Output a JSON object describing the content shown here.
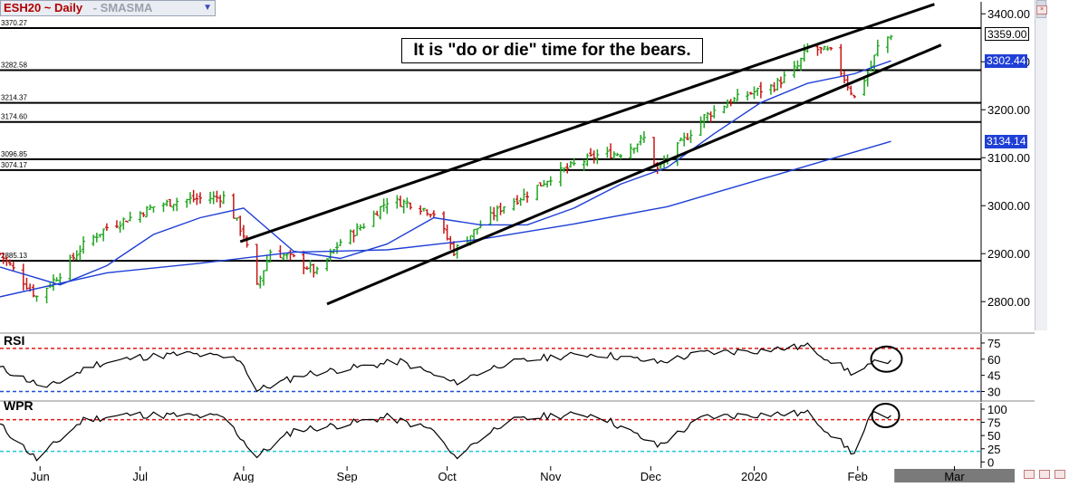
{
  "header": {
    "symbol": "ESH20 ~ Daily",
    "indicators": "-  SMASMA"
  },
  "annotation": "It is \"do or die\" time for the bears.",
  "colors": {
    "background": "#ffffff",
    "grid": "#d0d0d0",
    "candle_up": "#1fa51f",
    "candle_down": "#c81414",
    "sma_short": "#1f3fd6",
    "sma_long": "#1f3fd6",
    "level_line": "#000000",
    "rsi_line": "#000000",
    "rsi_overbought": "#e01818",
    "rsi_oversold": "#1f4fd6",
    "wpr_overbought": "#e01818",
    "wpr_oversold": "#21c8d8",
    "bottom_bar": "#7a7a7a"
  },
  "chart_data": [
    {
      "type": "candlestick",
      "x_ticks": [
        "Jun",
        "Jul",
        "Aug",
        "Sep",
        "Oct",
        "Nov",
        "Dec",
        "2020",
        "Feb",
        "Mar"
      ],
      "y_ticks": [
        "3400.00",
        "3300.00",
        "3200.00",
        "3100.00",
        "3000.00",
        "2900.00",
        "2800.00"
      ],
      "ylim": [
        2740,
        3425
      ],
      "price_labels": [
        {
          "label": "3359.00",
          "value": 3359,
          "style": "black-box"
        },
        {
          "label": "3302.44",
          "value": 3302.44,
          "style": "blue-box"
        },
        {
          "label": "3134.14",
          "value": 3134.14,
          "style": "blue-box"
        }
      ],
      "horizontal_levels": [
        {
          "label": "3370.27",
          "value": 3370.27
        },
        {
          "label": "3282.58",
          "value": 3282.58
        },
        {
          "label": "3214.37",
          "value": 3214.37
        },
        {
          "label": "3174.60",
          "value": 3174.6
        },
        {
          "label": "3096.85",
          "value": 3096.85
        },
        {
          "label": "3074.17",
          "value": 3074.17
        },
        {
          "label": "2885.13",
          "value": 2885.13
        }
      ],
      "trend_channel": [
        {
          "name": "upper",
          "start": {
            "x": "2019-07-31",
            "y": 2925
          },
          "end": {
            "x": "2020-02-24",
            "y": 3420
          }
        },
        {
          "name": "lower",
          "start": {
            "x": "2019-08-26",
            "y": 2795
          },
          "end": {
            "x": "2020-02-26",
            "y": 3335
          }
        }
      ],
      "series": [
        {
          "kind": "close",
          "x": [
            "2019-05-20",
            "2019-05-31",
            "2019-06-07",
            "2019-06-14",
            "2019-06-21",
            "2019-06-28",
            "2019-07-05",
            "2019-07-12",
            "2019-07-19",
            "2019-07-26",
            "2019-08-01",
            "2019-08-05",
            "2019-08-09",
            "2019-08-16",
            "2019-08-23",
            "2019-08-30",
            "2019-09-06",
            "2019-09-13",
            "2019-09-20",
            "2019-09-27",
            "2019-10-03",
            "2019-10-11",
            "2019-10-18",
            "2019-10-25",
            "2019-11-01",
            "2019-11-08",
            "2019-11-15",
            "2019-11-22",
            "2019-11-29",
            "2019-12-03",
            "2019-12-10",
            "2019-12-17",
            "2019-12-24",
            "2019-12-31",
            "2020-01-07",
            "2020-01-14",
            "2020-01-17",
            "2020-01-24",
            "2020-01-31",
            "2020-02-05",
            "2020-02-07",
            "2020-02-11"
          ],
          "values": [
            2900,
            2810,
            2858,
            2918,
            2955,
            2975,
            2998,
            3010,
            3015,
            3018,
            2940,
            2830,
            2905,
            2890,
            2860,
            2925,
            2960,
            3010,
            3005,
            2985,
            2905,
            2960,
            3000,
            3025,
            3060,
            3085,
            3105,
            3110,
            3140,
            3075,
            3130,
            3185,
            3215,
            3235,
            3250,
            3290,
            3330,
            3320,
            3225,
            3290,
            3330,
            3358
          ]
        }
      ],
      "moving_averages": [
        {
          "kind": "short",
          "label": "3302.44",
          "x": [
            "2019-05-20",
            "2019-06-07",
            "2019-06-21",
            "2019-07-05",
            "2019-07-19",
            "2019-08-01",
            "2019-08-16",
            "2019-08-30",
            "2019-09-13",
            "2019-09-27",
            "2019-10-11",
            "2019-10-25",
            "2019-11-08",
            "2019-11-22",
            "2019-12-06",
            "2019-12-20",
            "2020-01-03",
            "2020-01-17",
            "2020-01-31",
            "2020-02-11"
          ],
          "values": [
            2872,
            2835,
            2875,
            2940,
            2975,
            2995,
            2905,
            2890,
            2920,
            2975,
            2960,
            2960,
            2995,
            3045,
            3080,
            3150,
            3215,
            3255,
            3275,
            3302
          ]
        },
        {
          "kind": "long",
          "label": "3134.14",
          "x": [
            "2019-05-20",
            "2019-06-21",
            "2019-07-19",
            "2019-08-16",
            "2019-09-13",
            "2019-10-11",
            "2019-11-08",
            "2019-12-06",
            "2020-01-03",
            "2020-02-11"
          ],
          "values": [
            2810,
            2860,
            2880,
            2903,
            2908,
            2930,
            2962,
            2998,
            3055,
            3134
          ]
        }
      ]
    },
    {
      "type": "line",
      "title": "RSI",
      "y_ticks": [
        "75",
        "60",
        "45",
        "30"
      ],
      "ylim": [
        22,
        80
      ],
      "reference_lines": [
        {
          "value": 70,
          "role": "overbought"
        },
        {
          "value": 30,
          "role": "oversold"
        }
      ],
      "x": [
        "2019-05-20",
        "2019-06-03",
        "2019-06-17",
        "2019-07-01",
        "2019-07-15",
        "2019-07-31",
        "2019-08-05",
        "2019-08-19",
        "2019-09-03",
        "2019-09-17",
        "2019-10-03",
        "2019-10-17",
        "2019-11-01",
        "2019-11-15",
        "2019-12-03",
        "2019-12-17",
        "2020-01-02",
        "2020-01-17",
        "2020-01-31",
        "2020-02-06",
        "2020-02-11"
      ],
      "values": [
        52,
        33,
        55,
        62,
        65,
        60,
        31,
        46,
        52,
        58,
        38,
        55,
        62,
        65,
        57,
        66,
        68,
        72,
        46,
        56,
        60
      ]
    },
    {
      "type": "line",
      "title": "WPR",
      "y_ticks": [
        "100",
        "75",
        "50",
        "25",
        "0"
      ],
      "ylim": [
        -8,
        112
      ],
      "reference_lines": [
        {
          "value": 80,
          "role": "overbought"
        },
        {
          "value": 20,
          "role": "oversold"
        }
      ],
      "x": [
        "2019-05-20",
        "2019-05-31",
        "2019-06-14",
        "2019-06-28",
        "2019-07-12",
        "2019-07-26",
        "2019-08-05",
        "2019-08-16",
        "2019-08-30",
        "2019-09-13",
        "2019-09-27",
        "2019-10-03",
        "2019-10-18",
        "2019-11-01",
        "2019-11-15",
        "2019-12-03",
        "2019-12-17",
        "2020-01-02",
        "2020-01-17",
        "2020-01-31",
        "2020-02-05",
        "2020-02-11"
      ],
      "values": [
        70,
        5,
        80,
        90,
        88,
        85,
        10,
        60,
        70,
        85,
        60,
        8,
        75,
        88,
        90,
        30,
        85,
        90,
        92,
        15,
        88,
        90
      ]
    }
  ]
}
